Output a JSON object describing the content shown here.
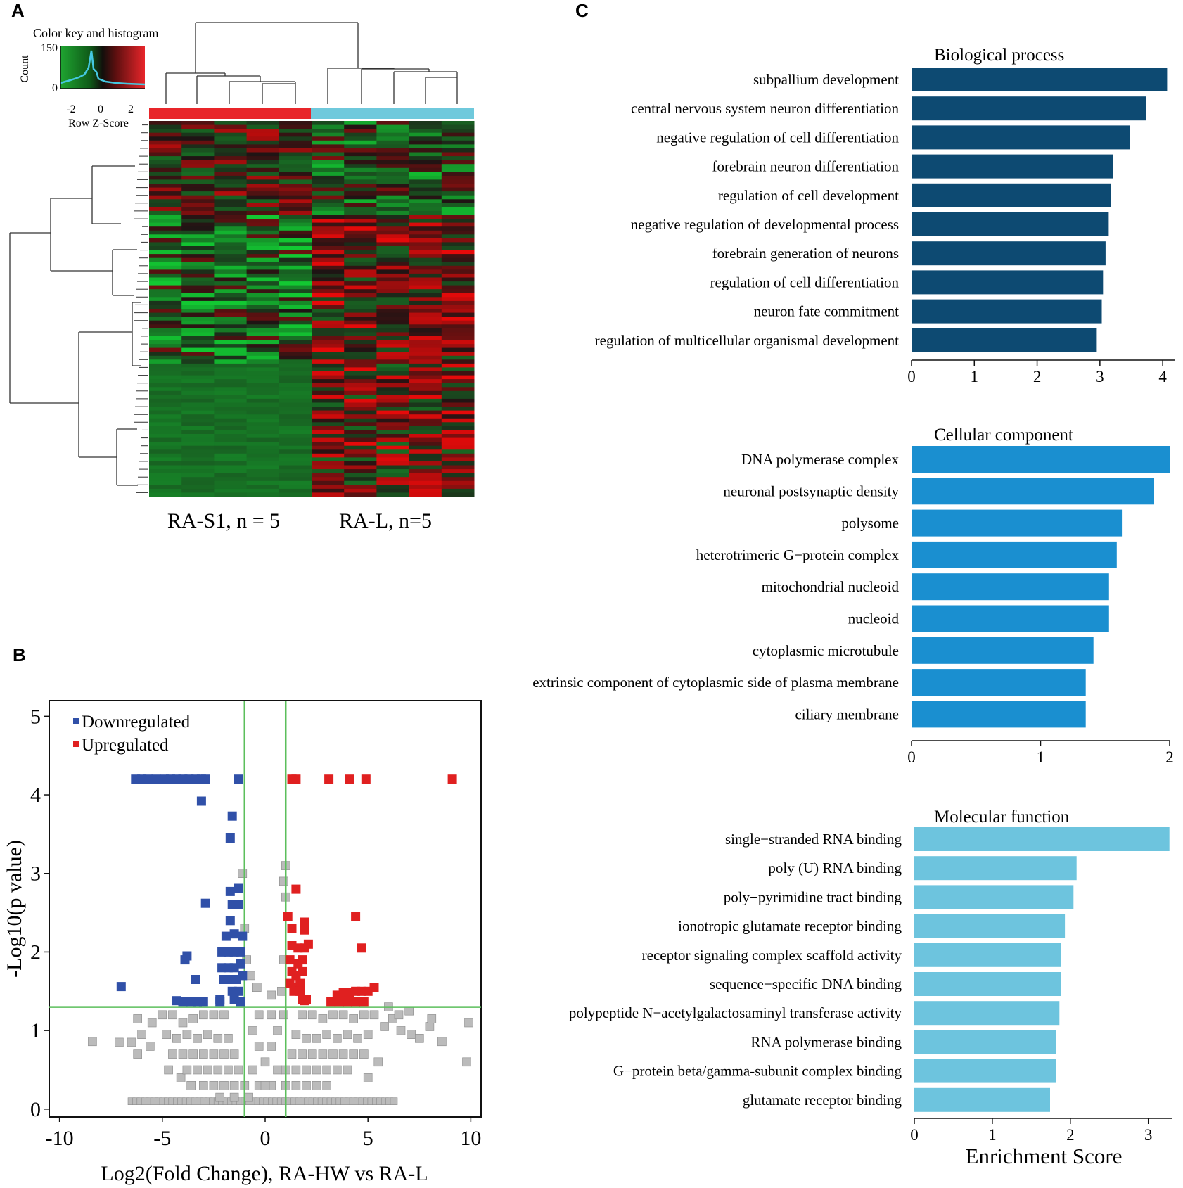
{
  "panels": {
    "a": "A",
    "b": "B",
    "c": "C"
  },
  "colors": {
    "bp_bar": "#0d4a72",
    "cc_bar": "#1a8fd0",
    "mf_bar": "#6dc4de",
    "down": "#3050a8",
    "up": "#e02020",
    "ns": "#bbbbbb",
    "threshold": "#5cbf5c",
    "group1": "#e8252a",
    "group2": "#6fc9dc"
  },
  "heatmap": {
    "color_key_title": "Color key and histogram",
    "count_label": "Count",
    "count_ticks": [
      "150",
      "0"
    ],
    "zscore_ticks": [
      "-2",
      "0",
      "2"
    ],
    "zscore_label": "Row Z-Score",
    "group1_label": "RA-S1, n = 5",
    "group2_label": "RA-L, n=5"
  },
  "chart_data": [
    {
      "id": "volcano",
      "type": "scatter",
      "title": "",
      "xlabel": "Log2(Fold Change), RA-HW vs RA-L",
      "ylabel": "-Log10(p value)",
      "xlim": [
        -10.5,
        10.5
      ],
      "ylim": [
        -0.1,
        5.2
      ],
      "xticks": [
        -10,
        -5,
        0,
        5,
        10
      ],
      "yticks": [
        0,
        1,
        2,
        3,
        4,
        5
      ],
      "thresholds": {
        "x": [
          -1,
          1
        ],
        "y": 1.3
      },
      "legend": [
        "Downregulated",
        "Upregulated"
      ],
      "down_points": [
        [
          -6.3,
          4.2
        ],
        [
          -6.0,
          4.2
        ],
        [
          -5.7,
          4.2
        ],
        [
          -5.3,
          4.2
        ],
        [
          -4.9,
          4.2
        ],
        [
          -4.6,
          4.2
        ],
        [
          -4.3,
          4.2
        ],
        [
          -4.0,
          4.2
        ],
        [
          -3.7,
          4.2
        ],
        [
          -3.4,
          4.2
        ],
        [
          -3.1,
          4.2
        ],
        [
          -2.9,
          4.2
        ],
        [
          -1.3,
          4.2
        ],
        [
          -3.1,
          3.92
        ],
        [
          -1.6,
          3.73
        ],
        [
          -1.7,
          3.45
        ],
        [
          -2.9,
          2.62
        ],
        [
          -1.7,
          2.77
        ],
        [
          -1.3,
          2.81
        ],
        [
          -1.6,
          2.6
        ],
        [
          -1.3,
          2.6
        ],
        [
          -1.7,
          2.4
        ],
        [
          -1.5,
          2.23
        ],
        [
          -1.9,
          2.2
        ],
        [
          -1.1,
          2.2
        ],
        [
          -2.1,
          2.0
        ],
        [
          -1.8,
          2.0
        ],
        [
          -1.5,
          2.0
        ],
        [
          -1.2,
          2.0
        ],
        [
          -3.8,
          1.95
        ],
        [
          -3.9,
          1.9
        ],
        [
          -2.1,
          1.8
        ],
        [
          -1.8,
          1.8
        ],
        [
          -1.5,
          1.8
        ],
        [
          -1.2,
          1.85
        ],
        [
          -2.0,
          1.65
        ],
        [
          -1.7,
          1.65
        ],
        [
          -1.4,
          1.65
        ],
        [
          -1.1,
          1.7
        ],
        [
          -3.4,
          1.65
        ],
        [
          -1.6,
          1.5
        ],
        [
          -1.3,
          1.5
        ],
        [
          -7.0,
          1.56
        ],
        [
          -2.2,
          1.4
        ],
        [
          -1.5,
          1.4
        ],
        [
          -4.3,
          1.38
        ],
        [
          -4.0,
          1.37
        ],
        [
          -3.6,
          1.37
        ],
        [
          -3.3,
          1.37
        ],
        [
          -3.0,
          1.37
        ],
        [
          -2.2,
          1.37
        ],
        [
          -1.2,
          1.37
        ]
      ],
      "up_points": [
        [
          1.3,
          4.2
        ],
        [
          1.5,
          4.2
        ],
        [
          3.1,
          4.2
        ],
        [
          4.1,
          4.2
        ],
        [
          4.9,
          4.2
        ],
        [
          9.1,
          4.2
        ],
        [
          1.5,
          2.8
        ],
        [
          1.1,
          2.45
        ],
        [
          1.9,
          2.38
        ],
        [
          1.3,
          2.3
        ],
        [
          1.9,
          2.28
        ],
        [
          4.4,
          2.45
        ],
        [
          4.7,
          2.05
        ],
        [
          1.3,
          2.08
        ],
        [
          1.6,
          2.05
        ],
        [
          1.9,
          2.05
        ],
        [
          2.1,
          2.1
        ],
        [
          1.2,
          1.9
        ],
        [
          1.6,
          1.85
        ],
        [
          1.8,
          1.9
        ],
        [
          1.3,
          1.75
        ],
        [
          1.5,
          1.7
        ],
        [
          1.8,
          1.75
        ],
        [
          1.2,
          1.6
        ],
        [
          1.5,
          1.55
        ],
        [
          1.7,
          1.6
        ],
        [
          1.4,
          1.5
        ],
        [
          1.7,
          1.5
        ],
        [
          1.8,
          1.4
        ],
        [
          1.9,
          1.38
        ],
        [
          2.0,
          1.4
        ],
        [
          3.5,
          1.45
        ],
        [
          3.8,
          1.48
        ],
        [
          4.1,
          1.48
        ],
        [
          4.4,
          1.5
        ],
        [
          4.7,
          1.5
        ],
        [
          5.0,
          1.5
        ],
        [
          5.3,
          1.55
        ],
        [
          3.2,
          1.37
        ],
        [
          3.6,
          1.37
        ],
        [
          4.0,
          1.37
        ],
        [
          4.4,
          1.37
        ],
        [
          4.8,
          1.37
        ]
      ],
      "ns_points": [
        [
          -1.1,
          3.0
        ],
        [
          1.0,
          3.1
        ],
        [
          0.9,
          2.9
        ],
        [
          1.0,
          2.7
        ],
        [
          -1.0,
          2.3
        ],
        [
          -0.9,
          1.9
        ],
        [
          0.9,
          1.9
        ],
        [
          -0.4,
          1.55
        ],
        [
          0.3,
          1.45
        ],
        [
          0.8,
          1.5
        ],
        [
          -0.7,
          1.7
        ],
        [
          0.9,
          1.2
        ],
        [
          -8.4,
          0.86
        ],
        [
          -7.1,
          0.85
        ],
        [
          -6.5,
          0.85
        ],
        [
          -6.2,
          1.15
        ],
        [
          -6.2,
          0.7
        ],
        [
          -6.0,
          0.95
        ],
        [
          -5.6,
          0.8
        ],
        [
          -5.5,
          1.1
        ],
        [
          -4.7,
          0.5
        ],
        [
          -4.1,
          0.4
        ],
        [
          -3.6,
          0.3
        ],
        [
          -5.0,
          1.2
        ],
        [
          -4.5,
          1.2
        ],
        [
          -4.0,
          1.1
        ],
        [
          -3.5,
          1.15
        ],
        [
          -3.0,
          1.2
        ],
        [
          -2.5,
          1.2
        ],
        [
          -2.0,
          1.2
        ],
        [
          -4.8,
          0.95
        ],
        [
          -4.3,
          0.9
        ],
        [
          -3.8,
          0.95
        ],
        [
          -3.3,
          0.9
        ],
        [
          -2.8,
          0.95
        ],
        [
          -2.3,
          0.9
        ],
        [
          -1.8,
          0.9
        ],
        [
          -4.5,
          0.7
        ],
        [
          -4.0,
          0.7
        ],
        [
          -3.5,
          0.7
        ],
        [
          -3.0,
          0.7
        ],
        [
          -2.5,
          0.7
        ],
        [
          -2.0,
          0.7
        ],
        [
          -1.5,
          0.7
        ],
        [
          -3.8,
          0.5
        ],
        [
          -3.3,
          0.5
        ],
        [
          -2.8,
          0.5
        ],
        [
          -2.3,
          0.5
        ],
        [
          -1.8,
          0.5
        ],
        [
          -1.3,
          0.5
        ],
        [
          -3.0,
          0.3
        ],
        [
          -2.5,
          0.3
        ],
        [
          -2.0,
          0.3
        ],
        [
          -1.5,
          0.3
        ],
        [
          -1.0,
          0.3
        ],
        [
          -2.2,
          0.15
        ],
        [
          -1.5,
          0.15
        ],
        [
          -0.8,
          0.15
        ],
        [
          -0.3,
          0.3
        ],
        [
          0.3,
          0.3
        ],
        [
          -0.6,
          1.0
        ],
        [
          -0.3,
          0.8
        ],
        [
          0.0,
          0.6
        ],
        [
          0.3,
          0.8
        ],
        [
          0.6,
          1.0
        ],
        [
          -0.6,
          0.5
        ],
        [
          0.6,
          0.5
        ],
        [
          0.0,
          0.3
        ],
        [
          -0.3,
          1.2
        ],
        [
          0.3,
          1.2
        ],
        [
          5.3,
          1.2
        ],
        [
          4.8,
          1.2
        ],
        [
          4.3,
          1.15
        ],
        [
          3.8,
          1.2
        ],
        [
          3.3,
          1.2
        ],
        [
          2.8,
          1.15
        ],
        [
          2.3,
          1.2
        ],
        [
          1.8,
          1.2
        ],
        [
          5.0,
          0.95
        ],
        [
          4.5,
          0.9
        ],
        [
          4.0,
          0.95
        ],
        [
          3.5,
          0.9
        ],
        [
          3.0,
          0.95
        ],
        [
          2.5,
          0.9
        ],
        [
          2.0,
          0.9
        ],
        [
          1.5,
          0.95
        ],
        [
          4.8,
          0.7
        ],
        [
          4.3,
          0.7
        ],
        [
          3.8,
          0.7
        ],
        [
          3.3,
          0.7
        ],
        [
          2.8,
          0.7
        ],
        [
          2.3,
          0.7
        ],
        [
          1.8,
          0.7
        ],
        [
          1.3,
          0.7
        ],
        [
          4.0,
          0.5
        ],
        [
          3.5,
          0.5
        ],
        [
          3.0,
          0.5
        ],
        [
          2.5,
          0.5
        ],
        [
          2.0,
          0.5
        ],
        [
          1.5,
          0.5
        ],
        [
          1.0,
          0.5
        ],
        [
          3.0,
          0.3
        ],
        [
          2.5,
          0.3
        ],
        [
          2.0,
          0.3
        ],
        [
          1.5,
          0.3
        ],
        [
          1.0,
          0.3
        ],
        [
          5.8,
          1.05
        ],
        [
          6.2,
          1.15
        ],
        [
          6.6,
          1.0
        ],
        [
          7.1,
          0.95
        ],
        [
          7.5,
          0.9
        ],
        [
          8.0,
          1.05
        ],
        [
          8.1,
          1.15
        ],
        [
          8.6,
          0.86
        ],
        [
          9.9,
          1.1
        ],
        [
          9.8,
          0.6
        ],
        [
          5.5,
          0.6
        ],
        [
          5.0,
          0.4
        ],
        [
          6.5,
          1.2
        ],
        [
          7.0,
          1.25
        ],
        [
          6.0,
          1.3
        ]
      ],
      "baseline": {
        "y": 0.1,
        "x_from": -6.5,
        "x_to": 6.3
      }
    },
    {
      "id": "biological_process",
      "type": "bar",
      "orientation": "horizontal",
      "title": "Biological process",
      "categories": [
        "subpallium development",
        "central nervous system neuron differentiation",
        "negative regulation of cell differentiation",
        "forebrain neuron differentiation",
        "regulation of cell development",
        "negative regulation of developmental process",
        "forebrain generation of neurons",
        "regulation of cell differentiation",
        "neuron fate commitment",
        "regulation of multicellular organismal development"
      ],
      "values": [
        4.07,
        3.74,
        3.48,
        3.21,
        3.18,
        3.14,
        3.09,
        3.05,
        3.03,
        2.95
      ],
      "xlim": [
        0,
        4.2
      ],
      "xticks": [
        0,
        1,
        2,
        3,
        4
      ]
    },
    {
      "id": "cellular_component",
      "type": "bar",
      "orientation": "horizontal",
      "title": "Cellular component",
      "categories": [
        "DNA polymerase complex",
        "neuronal postsynaptic density",
        "polysome",
        "heterotrimeric G−protein complex",
        "mitochondrial nucleoid",
        "nucleoid",
        "cytoplasmic microtubule",
        "extrinsic component of cytoplasmic side of plasma membrane",
        "ciliary membrane"
      ],
      "values": [
        2.0,
        1.88,
        1.63,
        1.59,
        1.53,
        1.53,
        1.41,
        1.35,
        1.35
      ],
      "xlim": [
        0,
        2.0
      ],
      "xticks": [
        0,
        1,
        2
      ]
    },
    {
      "id": "molecular_function",
      "type": "bar",
      "orientation": "horizontal",
      "title": "Molecular function",
      "categories": [
        "single−stranded RNA binding",
        "poly (U) RNA binding",
        "poly−pyrimidine tract binding",
        "ionotropic glutamate receptor binding",
        "receptor signaling complex scaffold activity",
        "sequence−specific DNA binding",
        "polypeptide N−acetylgalactosaminyl transferase activity",
        "RNA polymerase binding",
        "G−protein beta/gamma-subunit complex binding",
        "glutamate receptor binding"
      ],
      "values": [
        3.27,
        2.08,
        2.04,
        1.93,
        1.88,
        1.88,
        1.86,
        1.82,
        1.82,
        1.74
      ],
      "xlim": [
        0,
        3.3
      ],
      "xticks": [
        0,
        1,
        2,
        3
      ],
      "xlabel": "Enrichment Score"
    }
  ]
}
